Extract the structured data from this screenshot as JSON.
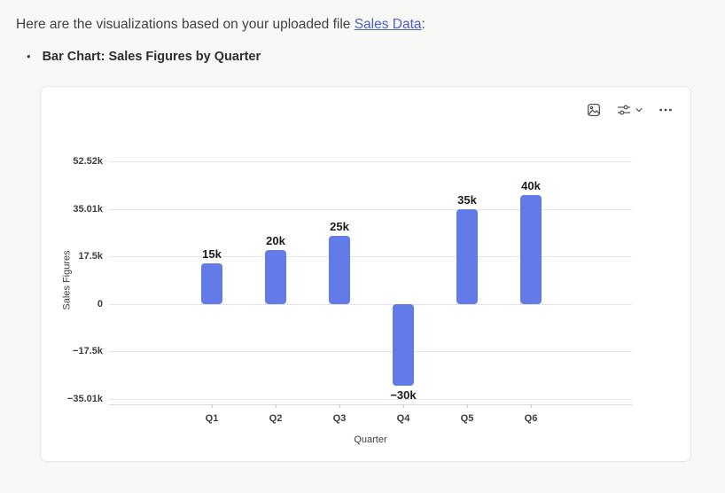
{
  "message": {
    "intro_prefix": "Here are the visualizations based on your uploaded file ",
    "intro_link": "Sales Data",
    "intro_suffix": ":",
    "bullet_marker": "•",
    "bullet_label": "Bar Chart: Sales Figures by Quarter"
  },
  "toolbar": {
    "icons": [
      "image-icon",
      "sliders-icon",
      "chevron-down-icon",
      "ellipsis-icon"
    ]
  },
  "colors": {
    "bar": "#637be8",
    "link": "#4a5dc8",
    "gridline": "#e5e5e5",
    "axis_line": "#d9d9d9",
    "icon": "#545454"
  },
  "chart_data": {
    "type": "bar",
    "categories": [
      "Q1",
      "Q2",
      "Q3",
      "Q4",
      "Q5",
      "Q6"
    ],
    "values": [
      15000,
      20000,
      25000,
      -30000,
      35000,
      40000
    ],
    "bar_labels": [
      "15k",
      "20k",
      "25k",
      "−30k",
      "35k",
      "40k"
    ],
    "title": "",
    "xlabel": "Quarter",
    "ylabel": "Sales Figures",
    "ylim": [
      -35010,
      52520
    ],
    "yticks": [
      {
        "value": 52520,
        "label": "52.52k"
      },
      {
        "value": 35010,
        "label": "35.01k"
      },
      {
        "value": 17500,
        "label": "17.5k"
      },
      {
        "value": 0,
        "label": "0"
      },
      {
        "value": -17500,
        "label": "−17.5k"
      },
      {
        "value": -35010,
        "label": "−35.01k"
      }
    ],
    "grid": true,
    "legend_position": "none",
    "bar_color": "#637be8"
  }
}
